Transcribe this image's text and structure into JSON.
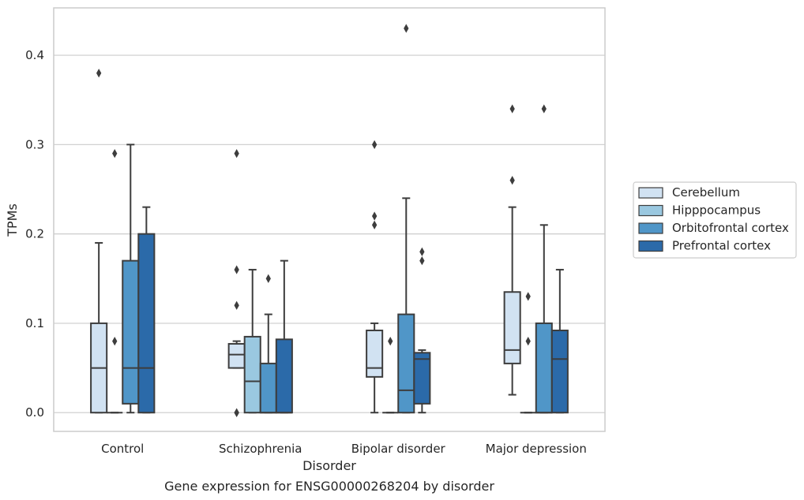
{
  "chart_data": {
    "type": "box",
    "caption": "Gene expression for ENSG00000268204 by disorder",
    "xlabel": "Disorder",
    "ylabel": "TPMs",
    "ylim": [
      -0.021,
      0.453
    ],
    "yticks": [
      0.0,
      0.1,
      0.2,
      0.3,
      0.4
    ],
    "ytick_labels": [
      "0.0",
      "0.1",
      "0.2",
      "0.3",
      "0.4"
    ],
    "grid": "horizontal",
    "legend_position": "right",
    "categories": [
      "Control",
      "Schizophrenia",
      "Bipolar disorder",
      "Major depression"
    ],
    "series": [
      {
        "name": "Cerebellum",
        "color": "#d1e2f2",
        "boxes": [
          {
            "q1": 0.0,
            "median": 0.05,
            "q3": 0.1,
            "whisker_low": 0.0,
            "whisker_high": 0.19,
            "outliers": [
              0.38
            ]
          },
          {
            "q1": 0.05,
            "median": 0.065,
            "q3": 0.077,
            "whisker_low": 0.05,
            "whisker_high": 0.08,
            "outliers": [
              0.29,
              0.16,
              0.12,
              0.0,
              0.0
            ]
          },
          {
            "q1": 0.04,
            "median": 0.05,
            "q3": 0.092,
            "whisker_low": 0.0,
            "whisker_high": 0.1,
            "outliers": [
              0.3,
              0.22,
              0.21
            ]
          },
          {
            "q1": 0.055,
            "median": 0.07,
            "q3": 0.135,
            "whisker_low": 0.02,
            "whisker_high": 0.23,
            "outliers": [
              0.34,
              0.26
            ]
          }
        ]
      },
      {
        "name": "Hipppocampus",
        "color": "#9ac8e0",
        "boxes": [
          {
            "q1": 0.0,
            "median": 0.0,
            "q3": 0.0,
            "whisker_low": 0.0,
            "whisker_high": 0.0,
            "outliers": [
              0.29,
              0.08
            ]
          },
          {
            "q1": 0.0,
            "median": 0.035,
            "q3": 0.085,
            "whisker_low": 0.0,
            "whisker_high": 0.16,
            "outliers": []
          },
          {
            "q1": 0.0,
            "median": 0.0,
            "q3": 0.0,
            "whisker_low": 0.0,
            "whisker_high": 0.0,
            "outliers": [
              0.08
            ]
          },
          {
            "q1": 0.0,
            "median": 0.0,
            "q3": 0.0,
            "whisker_low": 0.0,
            "whisker_high": 0.0,
            "outliers": [
              0.13,
              0.08
            ]
          }
        ]
      },
      {
        "name": "Orbitofrontal cortex",
        "color": "#5096c8",
        "boxes": [
          {
            "q1": 0.01,
            "median": 0.05,
            "q3": 0.17,
            "whisker_low": 0.0,
            "whisker_high": 0.3,
            "outliers": []
          },
          {
            "q1": 0.0,
            "median": 0.0,
            "q3": 0.055,
            "whisker_low": 0.0,
            "whisker_high": 0.11,
            "outliers": [
              0.15
            ]
          },
          {
            "q1": 0.0,
            "median": 0.025,
            "q3": 0.11,
            "whisker_low": 0.0,
            "whisker_high": 0.24,
            "outliers": [
              0.43
            ]
          },
          {
            "q1": 0.0,
            "median": 0.0,
            "q3": 0.1,
            "whisker_low": 0.0,
            "whisker_high": 0.21,
            "outliers": [
              0.34
            ]
          }
        ]
      },
      {
        "name": "Prefrontal cortex",
        "color": "#2b6aa9",
        "boxes": [
          {
            "q1": 0.0,
            "median": 0.05,
            "q3": 0.2,
            "whisker_low": 0.0,
            "whisker_high": 0.23,
            "outliers": []
          },
          {
            "q1": 0.0,
            "median": 0.0,
            "q3": 0.082,
            "whisker_low": 0.0,
            "whisker_high": 0.17,
            "outliers": []
          },
          {
            "q1": 0.01,
            "median": 0.06,
            "q3": 0.067,
            "whisker_low": 0.0,
            "whisker_high": 0.07,
            "outliers": [
              0.18,
              0.17
            ]
          },
          {
            "q1": 0.0,
            "median": 0.06,
            "q3": 0.092,
            "whisker_low": 0.0,
            "whisker_high": 0.16,
            "outliers": []
          }
        ]
      }
    ]
  }
}
